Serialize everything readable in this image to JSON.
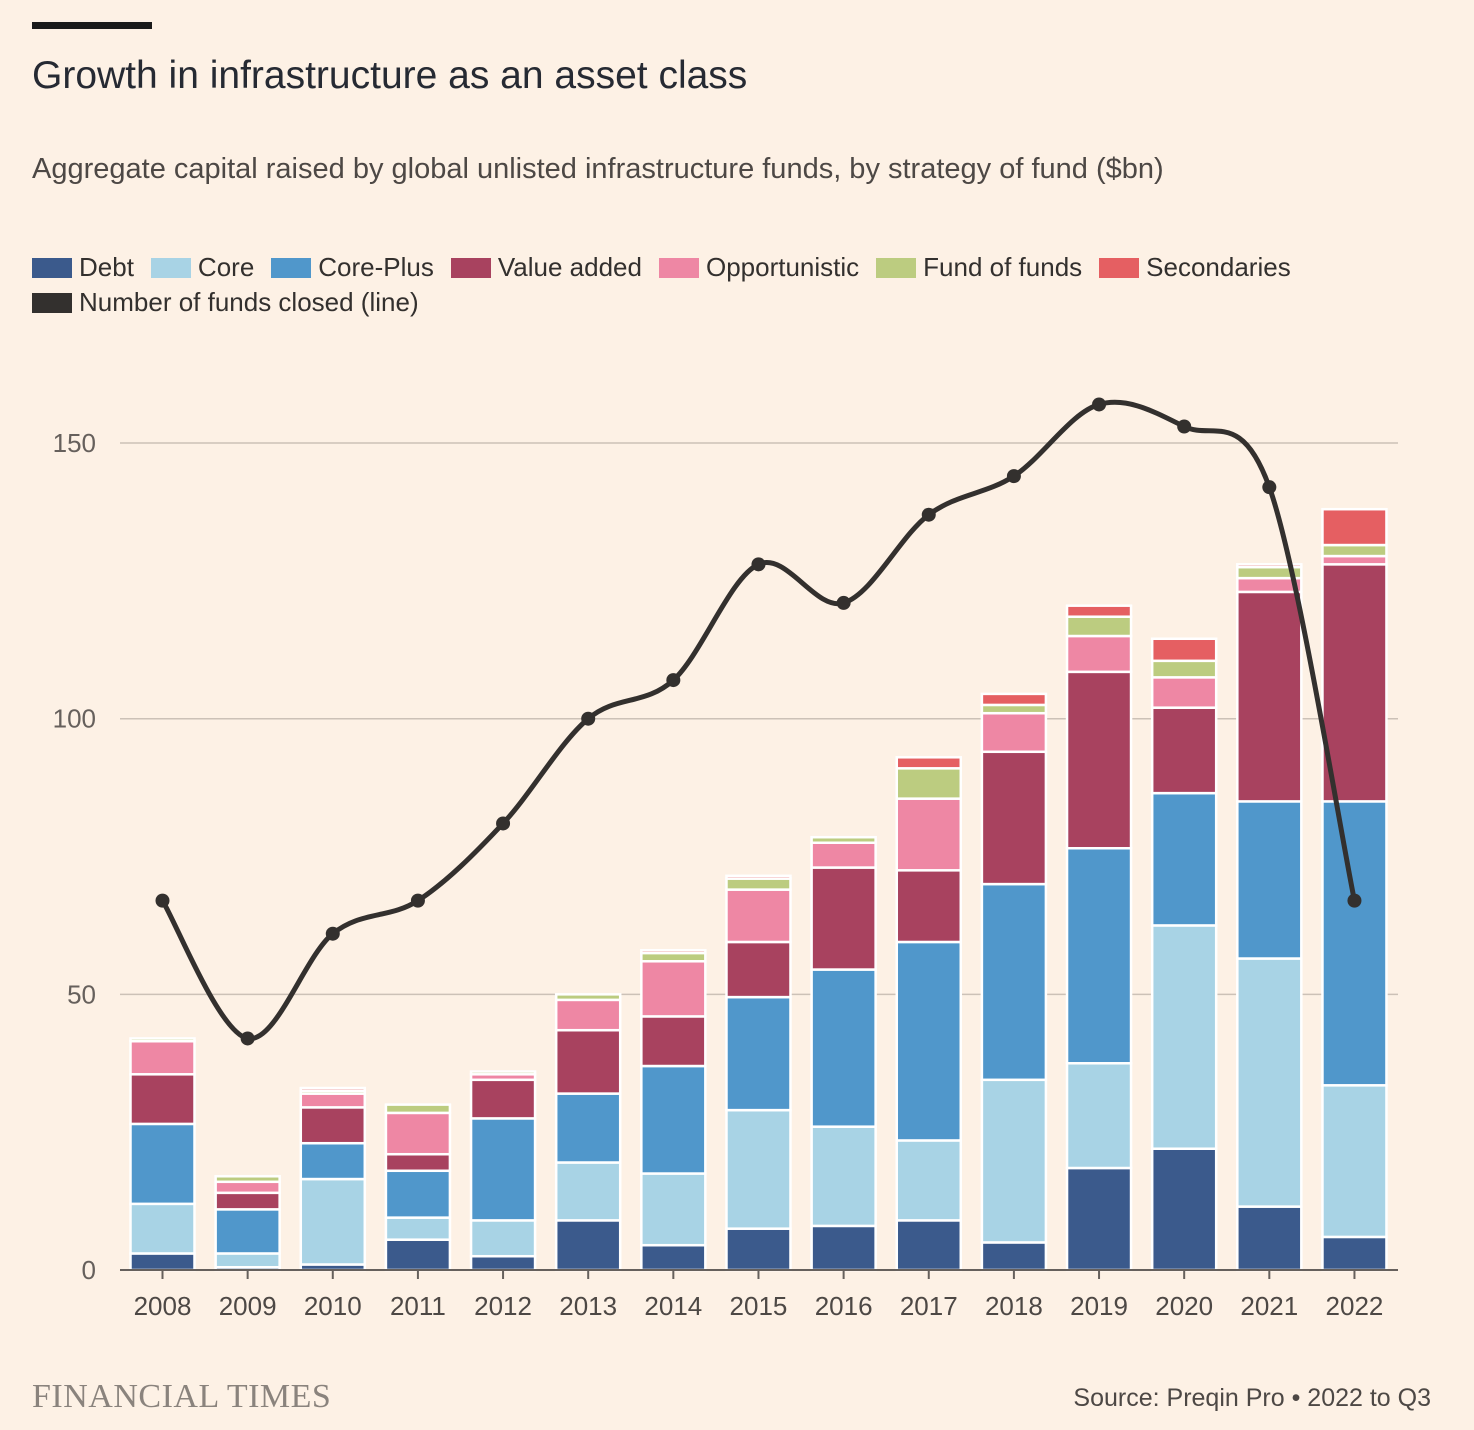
{
  "header": {
    "title": "Growth in infrastructure as an asset class",
    "subtitle": "Aggregate capital raised by global unlisted infrastructure funds, by strategy of fund ($bn)"
  },
  "legend": [
    {
      "label": "Debt",
      "color": "#3B5A8C"
    },
    {
      "label": "Core",
      "color": "#A8D3E5"
    },
    {
      "label": "Core-Plus",
      "color": "#5097CB"
    },
    {
      "label": "Value added",
      "color": "#A8425F"
    },
    {
      "label": "Opportunistic",
      "color": "#EE87A4"
    },
    {
      "label": "Fund of funds",
      "color": "#BCCC80"
    },
    {
      "label": "Secondaries",
      "color": "#E55F62"
    },
    {
      "label": "Number of funds closed (line)",
      "color": "#33302E"
    }
  ],
  "chart_data": {
    "type": "bar",
    "stacked": true,
    "categories": [
      "2008",
      "2009",
      "2010",
      "2011",
      "2012",
      "2013",
      "2014",
      "2015",
      "2016",
      "2017",
      "2018",
      "2019",
      "2020",
      "2021",
      "2022"
    ],
    "ylim": [
      0,
      160
    ],
    "yticks": [
      0,
      50,
      100,
      150
    ],
    "grid": true,
    "legend_position": "top",
    "series": [
      {
        "name": "Debt",
        "color": "#3B5A8C",
        "values": [
          3,
          0.5,
          1,
          5.5,
          2.5,
          9,
          4.5,
          7.5,
          8,
          9,
          5,
          18.5,
          22,
          11.5,
          6
        ]
      },
      {
        "name": "Core",
        "color": "#A8D3E5",
        "values": [
          9,
          2.5,
          15.5,
          4,
          6.5,
          10.5,
          13,
          21.5,
          18,
          14.5,
          29.5,
          19,
          40.5,
          45,
          27.5
        ]
      },
      {
        "name": "Core-Plus",
        "color": "#5097CB",
        "values": [
          14.5,
          8,
          6.5,
          8.5,
          18.5,
          12.5,
          19.5,
          20.5,
          28.5,
          36,
          35.5,
          39,
          24,
          28.5,
          51.5
        ]
      },
      {
        "name": "Value added",
        "color": "#A8425F",
        "values": [
          9,
          3,
          6.5,
          3,
          7,
          11.5,
          9,
          10,
          18.5,
          13,
          24,
          32,
          15.5,
          38,
          43
        ]
      },
      {
        "name": "Opportunistic",
        "color": "#EE87A4",
        "values": [
          6,
          2,
          2.5,
          7.5,
          1,
          5.5,
          10,
          9.5,
          4.5,
          13,
          7,
          6.5,
          5.5,
          2.5,
          1.5
        ]
      },
      {
        "name": "Fund of funds",
        "color": "#BCCC80",
        "values": [
          0.5,
          1,
          0.5,
          1.5,
          0.5,
          1,
          1.5,
          2,
          1,
          5.5,
          1.5,
          3.5,
          3,
          2,
          2
        ]
      },
      {
        "name": "Secondaries",
        "color": "#E55F62",
        "values": [
          0,
          0,
          0.5,
          0,
          0,
          0,
          0.5,
          0.5,
          0,
          2,
          2,
          2,
          4,
          0.5,
          6.5
        ]
      }
    ],
    "line": {
      "name": "Number of funds closed (line)",
      "color": "#33302E",
      "values": [
        67,
        42,
        61,
        67,
        81,
        100,
        107,
        128,
        121,
        137,
        144,
        157,
        153,
        142,
        67
      ]
    }
  },
  "footer": {
    "logo": "FINANCIAL TIMES",
    "source": "Source: Preqin Pro • 2022 to Q3"
  }
}
